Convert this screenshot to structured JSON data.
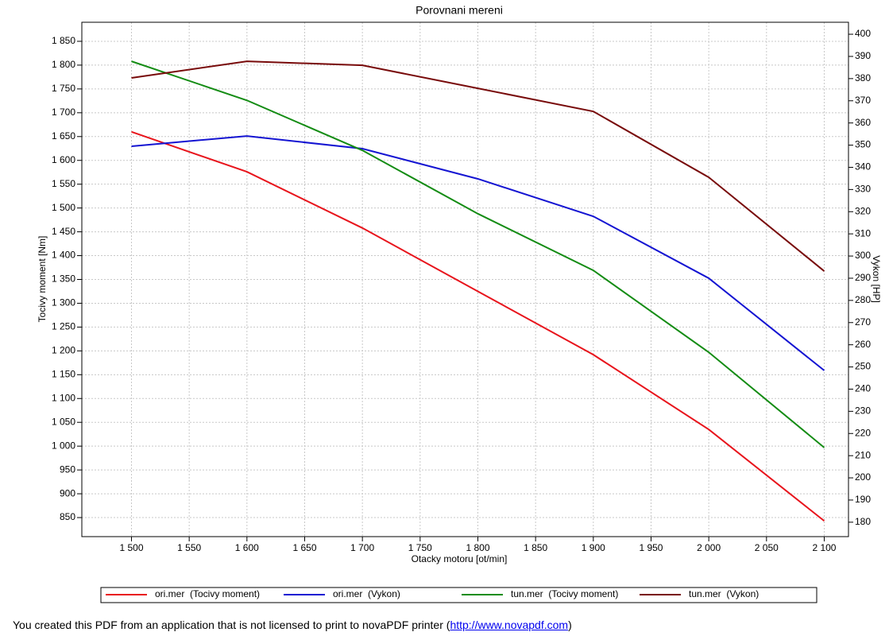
{
  "chart_data": {
    "type": "line",
    "title": "Porovnani mereni",
    "x_label": "Otacky motoru [ot/min]",
    "y_label": "Tocivy moment [Nm]",
    "y2_label": "Vykon [HP]",
    "x": [
      1500,
      1600,
      1700,
      1800,
      1900,
      2000,
      2100
    ],
    "xlim": [
      1457,
      2121
    ],
    "xticks": [
      {
        "value": 1500,
        "label": "1 500"
      },
      {
        "value": 1550,
        "label": "1 550"
      },
      {
        "value": 1600,
        "label": "1 600"
      },
      {
        "value": 1650,
        "label": "1 650"
      },
      {
        "value": 1700,
        "label": "1 700"
      },
      {
        "value": 1750,
        "label": "1 750"
      },
      {
        "value": 1800,
        "label": "1 800"
      },
      {
        "value": 1850,
        "label": "1 850"
      },
      {
        "value": 1900,
        "label": "1 900"
      },
      {
        "value": 1950,
        "label": "1 950"
      },
      {
        "value": 2000,
        "label": "2 000"
      },
      {
        "value": 2050,
        "label": "2 050"
      },
      {
        "value": 2100,
        "label": "2 100"
      }
    ],
    "ylim": [
      810,
      1890
    ],
    "yticks": [
      850,
      900,
      950,
      {
        "value": 1000,
        "label": "1 000"
      },
      {
        "value": 1050,
        "label": "1 050"
      },
      {
        "value": 1100,
        "label": "1 100"
      },
      {
        "value": 1150,
        "label": "1 150"
      },
      {
        "value": 1200,
        "label": "1 200"
      },
      {
        "value": 1250,
        "label": "1 250"
      },
      {
        "value": 1300,
        "label": "1 300"
      },
      {
        "value": 1350,
        "label": "1 350"
      },
      {
        "value": 1400,
        "label": "1 400"
      },
      {
        "value": 1450,
        "label": "1 450"
      },
      {
        "value": 1500,
        "label": "1 500"
      },
      {
        "value": 1550,
        "label": "1 550"
      },
      {
        "value": 1600,
        "label": "1 600"
      },
      {
        "value": 1650,
        "label": "1 650"
      },
      {
        "value": 1700,
        "label": "1 700"
      },
      {
        "value": 1750,
        "label": "1 750"
      },
      {
        "value": 1800,
        "label": "1 800"
      },
      {
        "value": 1850,
        "label": "1 850"
      }
    ],
    "y2lim": [
      173.5,
      405.4
    ],
    "y2ticks": [
      180,
      190,
      200,
      210,
      220,
      230,
      240,
      250,
      260,
      270,
      280,
      290,
      300,
      310,
      320,
      330,
      340,
      350,
      360,
      370,
      380,
      390,
      400
    ],
    "grid": true,
    "legend_position": "bottom",
    "series": [
      {
        "name": "ori.mer  (Tocivy moment)",
        "color": "#e8141c",
        "values": [
          1660,
          1576,
          1458,
          1325,
          1192,
          1035,
          843
        ]
      },
      {
        "name": "ori.mer  (Vykon)",
        "color": "#1414d2",
        "axis": "y2",
        "values": [
          349.5,
          354.1,
          348.4,
          334.8,
          317.9,
          290,
          248.4
        ]
      },
      {
        "name": "tun.mer  (Tocivy moment)",
        "color": "#148c14",
        "values": [
          1808,
          1726,
          1621,
          1488,
          1369,
          1197,
          997
        ]
      },
      {
        "name": "tun.mer  (Vykon)",
        "color": "#780a0a",
        "axis": "y2",
        "values": [
          380.3,
          387.8,
          386,
          375.6,
          365.2,
          335.5,
          293.2
        ]
      }
    ]
  },
  "footer": {
    "text_before": "You created this PDF from an application that is not licensed to print to novaPDF printer (",
    "link": "http://www.novapdf.com",
    "text_after": ")"
  }
}
